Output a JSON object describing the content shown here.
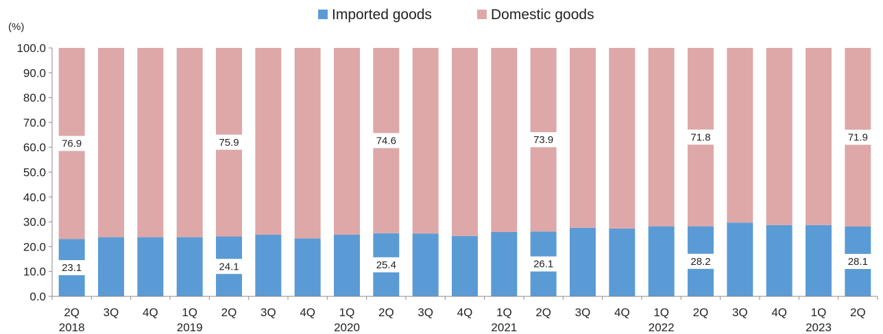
{
  "chart_data": {
    "type": "bar",
    "stacked": true,
    "percent_stacked": true,
    "unit_label": "(%)",
    "ylim": [
      0,
      100
    ],
    "yticks": [
      0,
      10,
      20,
      30,
      40,
      50,
      60,
      70,
      80,
      90,
      100
    ],
    "ytick_labels": [
      "0.0",
      "10.0",
      "20.0",
      "30.0",
      "40.0",
      "50.0",
      "60.0",
      "70.0",
      "80.0",
      "90.0",
      "100.0"
    ],
    "grid": false,
    "legend_position": "top-center",
    "categories": [
      "2Q",
      "3Q",
      "4Q",
      "1Q",
      "2Q",
      "3Q",
      "4Q",
      "1Q",
      "2Q",
      "3Q",
      "4Q",
      "1Q",
      "2Q",
      "3Q",
      "4Q",
      "1Q",
      "2Q",
      "3Q",
      "4Q",
      "1Q",
      "2Q"
    ],
    "year_labels": [
      "2018",
      "",
      "",
      "2019",
      "",
      "",
      "",
      "2020",
      "",
      "",
      "",
      "2021",
      "",
      "",
      "",
      "2022",
      "",
      "",
      "",
      "2023",
      ""
    ],
    "series": [
      {
        "name": "Imported goods",
        "color": "#5b9bd5",
        "values": [
          23.1,
          23.8,
          23.8,
          23.8,
          24.1,
          24.8,
          23.3,
          24.8,
          25.4,
          25.3,
          24.3,
          25.9,
          26.1,
          27.6,
          27.3,
          28.2,
          28.2,
          29.7,
          28.7,
          28.7,
          28.1
        ],
        "data_labels": [
          "23.1",
          "",
          "",
          "",
          "24.1",
          "",
          "",
          "",
          "25.4",
          "",
          "",
          "",
          "26.1",
          "",
          "",
          "",
          "28.2",
          "",
          "",
          "",
          "28.1"
        ]
      },
      {
        "name": "Domestic goods",
        "color": "#dea8a8",
        "values": [
          76.9,
          76.2,
          76.2,
          76.2,
          75.9,
          75.2,
          76.7,
          75.2,
          74.6,
          74.7,
          75.7,
          74.1,
          73.9,
          72.4,
          72.7,
          71.8,
          71.8,
          70.3,
          71.3,
          71.3,
          71.9
        ],
        "data_labels": [
          "76.9",
          "",
          "",
          "",
          "75.9",
          "",
          "",
          "",
          "74.6",
          "",
          "",
          "",
          "73.9",
          "",
          "",
          "",
          "71.8",
          "",
          "",
          "",
          "71.9"
        ]
      }
    ]
  }
}
